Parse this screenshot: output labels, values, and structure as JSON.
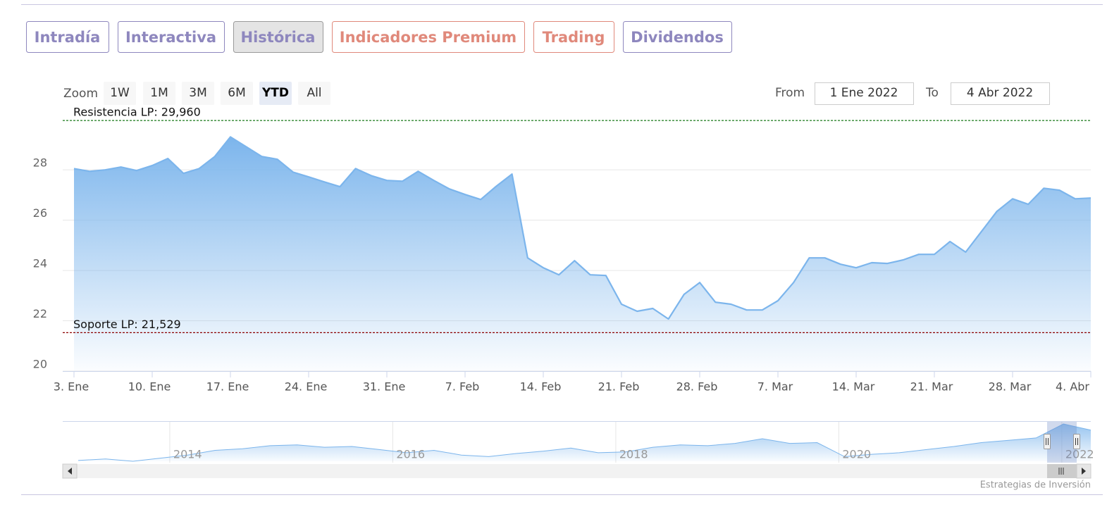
{
  "chart_data": {
    "type": "area",
    "tabs": [
      {
        "label": "Intradía",
        "color": "#8e87be"
      },
      {
        "label": "Interactiva",
        "color": "#8e87be"
      },
      {
        "label": "Histórica",
        "color": "#8e87be",
        "selected": true
      },
      {
        "label": "Indicadores Premium",
        "color": "#e0897b"
      },
      {
        "label": "Trading",
        "color": "#e0897b"
      },
      {
        "label": "Dividendos",
        "color": "#8e87be"
      }
    ],
    "zoom_label": "Zoom",
    "zoom_buttons": [
      {
        "label": "1W"
      },
      {
        "label": "1M"
      },
      {
        "label": "3M"
      },
      {
        "label": "6M"
      },
      {
        "label": "YTD",
        "selected": true
      },
      {
        "label": "All"
      }
    ],
    "from_label": "From",
    "from_value": "1 Ene 2022",
    "to_label": "To",
    "to_value": "4 Abr 2022",
    "categories": [
      "3. Ene",
      null,
      null,
      null,
      null,
      "10. Ene",
      null,
      null,
      null,
      null,
      "17. Ene",
      null,
      null,
      null,
      null,
      "24. Ene",
      null,
      null,
      null,
      null,
      "31. Ene",
      null,
      null,
      null,
      null,
      "7. Feb",
      null,
      null,
      null,
      null,
      "14. Feb",
      null,
      null,
      null,
      null,
      "21. Feb",
      null,
      null,
      null,
      null,
      "28. Feb",
      null,
      null,
      null,
      null,
      "7. Mar",
      null,
      null,
      null,
      null,
      "14. Mar",
      null,
      null,
      null,
      null,
      "21. Mar",
      null,
      null,
      null,
      null,
      "28. Mar",
      null,
      null,
      null,
      null,
      "4. Abr"
    ],
    "values": [
      28.05,
      27.94,
      28.0,
      28.11,
      27.97,
      28.17,
      28.45,
      27.86,
      28.05,
      28.53,
      29.31,
      28.92,
      28.53,
      28.42,
      27.91,
      27.72,
      27.52,
      27.33,
      28.05,
      27.77,
      27.58,
      27.55,
      27.94,
      27.58,
      27.24,
      27.02,
      26.82,
      27.35,
      27.83,
      24.5,
      24.11,
      23.83,
      24.39,
      23.83,
      23.8,
      22.66,
      22.38,
      22.49,
      22.07,
      23.05,
      23.52,
      22.74,
      22.66,
      22.43,
      22.43,
      22.8,
      23.52,
      24.5,
      24.5,
      24.25,
      24.11,
      24.31,
      24.28,
      24.42,
      24.64,
      24.64,
      25.15,
      24.73,
      25.54,
      26.35,
      26.85,
      26.63,
      27.27,
      27.19,
      26.85,
      26.88
    ],
    "color": "#7cb5ec",
    "ylim": [
      20,
      30.3
    ],
    "yticks": [
      20,
      22,
      24,
      26,
      28
    ],
    "grid": true,
    "plot_lines": [
      {
        "label": "Resistencia LP: 29,960",
        "value": 29.96,
        "color": "#1a7a1a"
      },
      {
        "label": "Soporte LP: 21,529",
        "value": 21.529,
        "color": "#8b0000"
      }
    ],
    "navigator": {
      "values": [
        15.2,
        15.8,
        14.9,
        16.1,
        17.3,
        19.1,
        19.7,
        20.9,
        21.2,
        20.3,
        20.6,
        19.4,
        18.2,
        19.1,
        17.3,
        16.7,
        17.9,
        18.8,
        20.0,
        18.2,
        18.5,
        20.3,
        21.2,
        20.9,
        21.8,
        23.6,
        21.8,
        22.1,
        16.7,
        17.6,
        18.2,
        19.4,
        20.6,
        22.1,
        23.0,
        23.9,
        29.3,
        26.9
      ],
      "xlim": [
        2013.04,
        2022.26
      ],
      "xticks": [
        2014,
        2016,
        2018,
        2020,
        2022
      ]
    },
    "credit": "Estrategias de Inversión"
  }
}
